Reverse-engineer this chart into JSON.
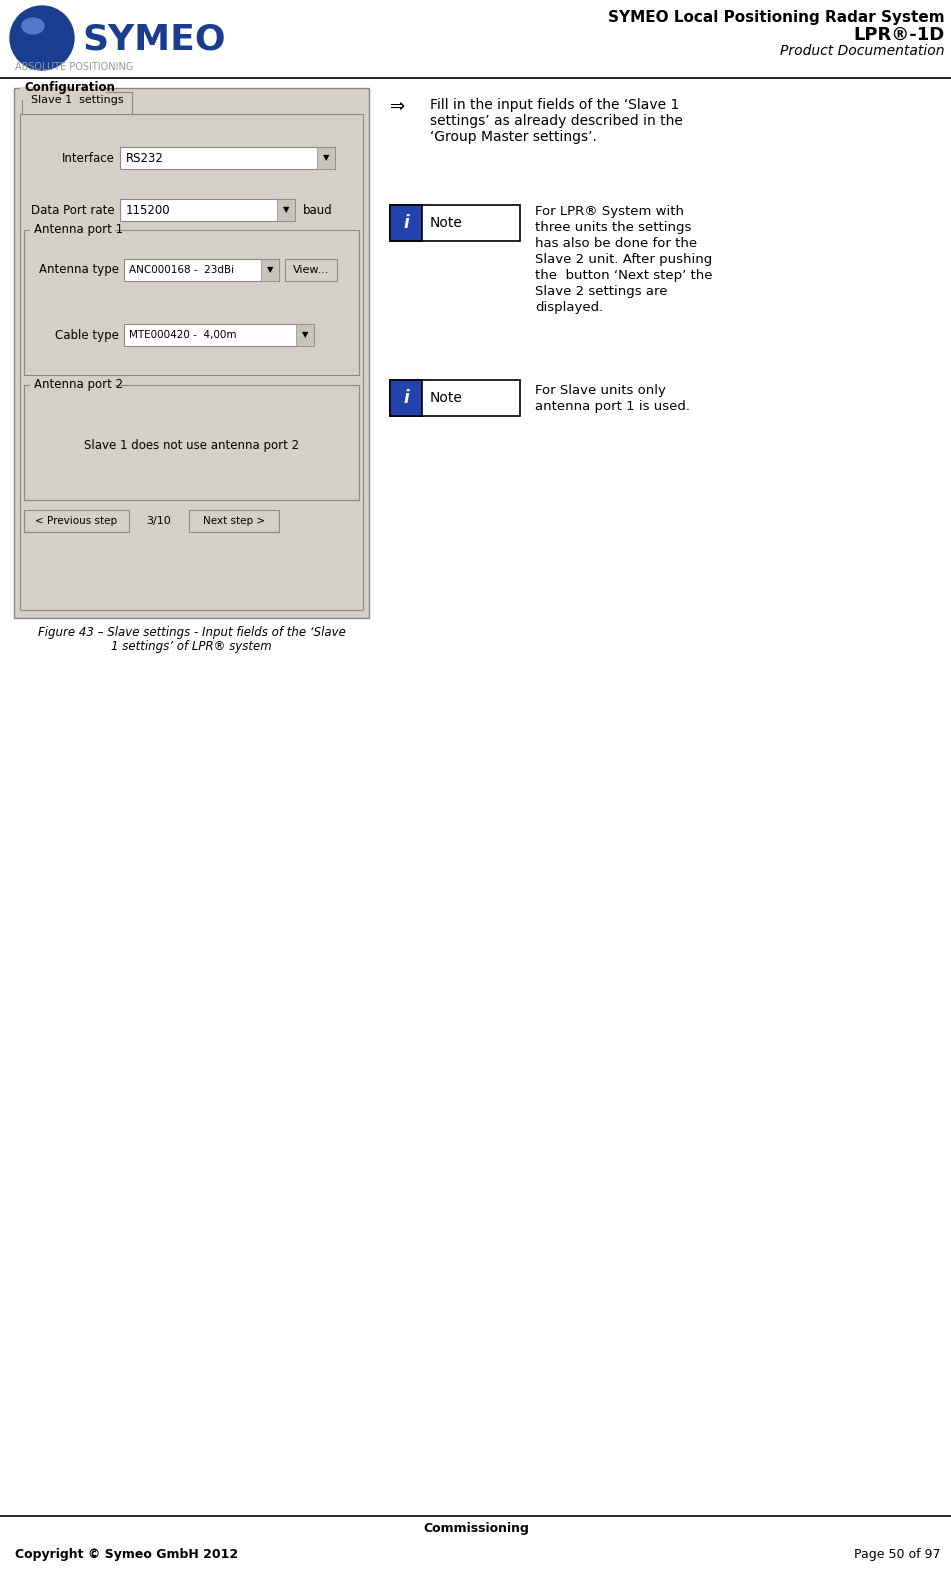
{
  "page_title_line1": "SYMEO Local Positioning Radar System",
  "page_title_line2": "LPR®-1D",
  "page_title_line3": "Product Documentation",
  "logo_text": "SYMEO",
  "logo_sub": "ABSOLUTE POSITIONING",
  "footer_center": "Commissioning",
  "footer_left": "Copyright © Symeo GmbH 2012",
  "footer_right": "Page 50 of 97",
  "bg_color": "#ffffff",
  "panel_bg": "#d4d0c8",
  "arrow_bullet": "⇒",
  "bullet_text_line1": "Fill in the input fields of the ‘Slave 1",
  "bullet_text_line2": "settings’ as already described in the",
  "bullet_text_line3": "‘Group Master settings’.",
  "note1_text_line1": "For LPR® System with",
  "note1_text_line2": "three units the settings",
  "note1_text_line3": "has also be done for the",
  "note1_text_line4": "Slave 2 unit. After pushing",
  "note1_text_line5": "the  button ‘Next step’ the",
  "note1_text_line6": "Slave 2 settings are",
  "note1_text_line7": "displayed.",
  "note2_text_line1": "For Slave units only",
  "note2_text_line2": "antenna port 1 is used.",
  "note_label": "Note",
  "note_icon": "i",
  "fig_caption_line1": "Figure 43 – Slave settings - Input fields of the ‘Slave",
  "fig_caption_line2": "1 settings’ of LPR® system",
  "config_label": "Configuration",
  "tab_label": "Slave 1  settings",
  "interface_label": "Interface",
  "interface_value": "RS232",
  "dataport_label": "Data Port rate",
  "dataport_value": "115200",
  "dataport_unit": "baud",
  "ant1_label": "Antenna port 1",
  "ant_type_label": "Antenna type",
  "ant_type_value": "ANC000168 -  23dBi",
  "view_btn": "View...",
  "cable_label": "Cable type",
  "cable_value": "MTE000420 -  4,00m",
  "ant2_label": "Antenna port 2",
  "ant2_msg": "Slave 1 does not use antenna port 2",
  "prev_btn": "< Previous step",
  "step_indicator": "3/10",
  "next_btn": "Next step >"
}
